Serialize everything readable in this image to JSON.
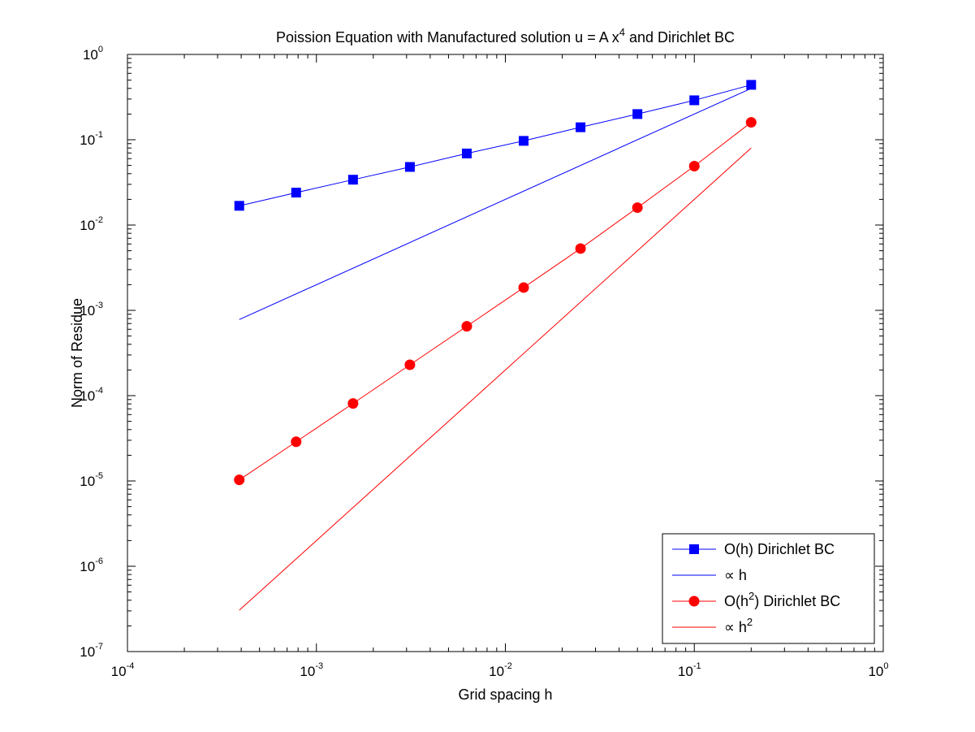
{
  "chart_data": {
    "type": "line",
    "title_parts": [
      "Poission Equation with Manufactured solution u = A x",
      "4",
      " and Dirichlet BC"
    ],
    "xlabel": "Grid spacing h",
    "ylabel": "Norm of Residue",
    "xscale": "log",
    "yscale": "log",
    "xlim": [
      0.0001,
      1
    ],
    "ylim": [
      1e-07,
      1
    ],
    "x_ticks": [
      {
        "value": 0.0001,
        "base": "10",
        "exp": "-4"
      },
      {
        "value": 0.001,
        "base": "10",
        "exp": "-3"
      },
      {
        "value": 0.01,
        "base": "10",
        "exp": "-2"
      },
      {
        "value": 0.1,
        "base": "10",
        "exp": "-1"
      },
      {
        "value": 1,
        "base": "10",
        "exp": "0"
      }
    ],
    "y_ticks": [
      {
        "value": 1e-07,
        "base": "10",
        "exp": "-7"
      },
      {
        "value": 1e-06,
        "base": "10",
        "exp": "-6"
      },
      {
        "value": 1e-05,
        "base": "10",
        "exp": "-5"
      },
      {
        "value": 0.0001,
        "base": "10",
        "exp": "-4"
      },
      {
        "value": 0.001,
        "base": "10",
        "exp": "-3"
      },
      {
        "value": 0.01,
        "base": "10",
        "exp": "-2"
      },
      {
        "value": 0.1,
        "base": "10",
        "exp": "-1"
      },
      {
        "value": 1,
        "base": "10",
        "exp": "0"
      }
    ],
    "grid": false,
    "legend_position": "bottom-right",
    "series": [
      {
        "name_parts": [
          "O(h) Dirichlet BC"
        ],
        "color": "#0000ff",
        "marker": "square",
        "x": [
          0.2,
          0.1,
          0.05,
          0.025,
          0.0125,
          0.00625,
          0.003125,
          0.0015625,
          0.00078125,
          0.000390625
        ],
        "y": [
          0.44,
          0.29,
          0.2,
          0.14,
          0.097,
          0.069,
          0.048,
          0.034,
          0.024,
          0.0168
        ]
      },
      {
        "name_parts": [
          "∝ h"
        ],
        "color": "#0000ff",
        "marker": "none",
        "x": [
          0.2,
          0.000390625
        ],
        "y": [
          0.4,
          0.00078
        ]
      },
      {
        "name_parts": [
          "O(h",
          "2",
          ") Dirichlet BC"
        ],
        "color": "#ff0000",
        "marker": "circle",
        "x": [
          0.2,
          0.1,
          0.05,
          0.025,
          0.0125,
          0.00625,
          0.003125,
          0.0015625,
          0.00078125,
          0.000390625
        ],
        "y": [
          0.16,
          0.049,
          0.016,
          0.0053,
          0.00185,
          0.00065,
          0.00023,
          8.1e-05,
          2.88e-05,
          1.03e-05
        ]
      },
      {
        "name_parts": [
          "∝ h",
          "2"
        ],
        "color": "#ff0000",
        "marker": "none",
        "x": [
          0.2,
          0.000390625
        ],
        "y": [
          0.08,
          3.05e-07
        ]
      }
    ]
  }
}
